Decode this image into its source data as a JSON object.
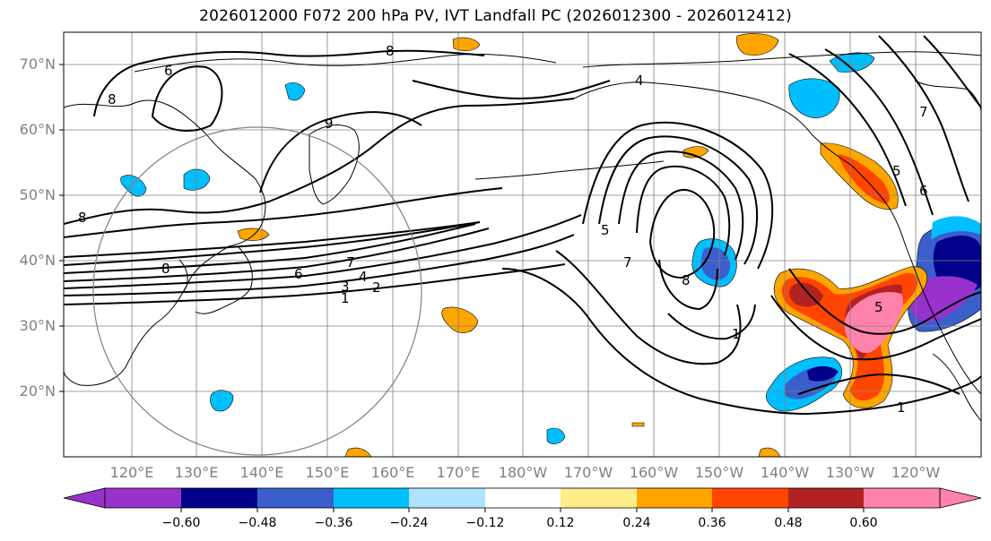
{
  "title": "2026012000 F072 200 hPa PV, IVT Landfall PC (2026012300 - 2026012412)",
  "map": {
    "lat_labels": [
      "70°N",
      "60°N",
      "50°N",
      "40°N",
      "30°N",
      "20°N"
    ],
    "lat_values": [
      70,
      60,
      50,
      40,
      30,
      20
    ],
    "lon_labels": [
      "120°E",
      "130°E",
      "140°E",
      "150°E",
      "160°E",
      "170°E",
      "180°W",
      "170°W",
      "160°W",
      "150°W",
      "140°W",
      "130°W",
      "120°W"
    ],
    "contour_labels": [
      "1",
      "2",
      "3",
      "4",
      "5",
      "6",
      "7",
      "8",
      "9"
    ],
    "fill_colors": {
      "purple": "#9932cc",
      "navy": "#00008b",
      "blue": "#3a5fcd",
      "deepskyblue": "#00bfff",
      "lightblue": "#b0e2ff",
      "white": "#ffffff",
      "khaki": "#ffec8b",
      "orange": "#ffa500",
      "orangered": "#ff4500",
      "firebrick": "#b22222",
      "pink": "#ff82ab"
    }
  },
  "colorbar": {
    "ticks": [
      "−0.60",
      "−0.48",
      "−0.36",
      "−0.24",
      "−0.12",
      "0.12",
      "0.24",
      "0.36",
      "0.48",
      "0.60"
    ],
    "colors": [
      "#9932cc",
      "#00008b",
      "#3a5fcd",
      "#00bfff",
      "#b0e2ff",
      "#ffffff",
      "#ffec8b",
      "#ffa500",
      "#ff4500",
      "#b22222",
      "#ff82ab"
    ]
  }
}
